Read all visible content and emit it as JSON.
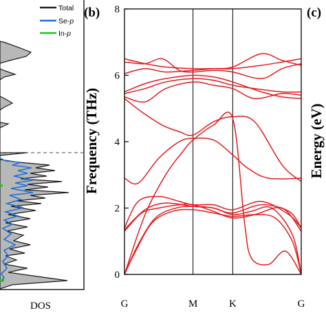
{
  "chart_data": [
    {
      "panel": "a",
      "type": "area",
      "xlabel": "DOS",
      "legend": {
        "placement": "top-right",
        "items": [
          {
            "name": "Total",
            "color": "#222222",
            "italic_suffix": ""
          },
          {
            "name": "Se-",
            "color": "#1f6fd6",
            "italic_suffix": "p"
          },
          {
            "name": "In-",
            "color": "#22c022",
            "italic_suffix": "p"
          }
        ]
      },
      "reference_line": "dashed",
      "fill_color": "#b8b8b8"
    },
    {
      "panel": "b",
      "panel_label": "(b)",
      "type": "line",
      "title": "",
      "ylabel": "Frequency (THz)",
      "ylim": [
        0,
        8
      ],
      "yticks": [
        "0",
        "2",
        "4",
        "6",
        "8"
      ],
      "kpoints": [
        {
          "label": "G",
          "x": 0
        },
        {
          "label": "M",
          "x": 1
        },
        {
          "label": "K",
          "x": 1.58
        },
        {
          "label": "G",
          "x": 2.58
        }
      ],
      "line_color": "#e31a1c",
      "zero_line": "dashed",
      "bands": [
        [
          [
            0,
            0
          ],
          [
            0.15,
            0.65
          ],
          [
            0.4,
            1.55
          ],
          [
            0.7,
            1.9
          ],
          [
            1,
            1.95
          ],
          [
            1.3,
            1.85
          ],
          [
            1.58,
            1.75
          ],
          [
            1.9,
            1.8
          ],
          [
            2.2,
            1.7
          ],
          [
            2.45,
            1.0
          ],
          [
            2.58,
            0
          ]
        ],
        [
          [
            0,
            0
          ],
          [
            0.2,
            0.9
          ],
          [
            0.45,
            1.7
          ],
          [
            0.75,
            2.0
          ],
          [
            1,
            2.05
          ],
          [
            1.3,
            2.0
          ],
          [
            1.58,
            1.8
          ],
          [
            1.85,
            1.9
          ],
          [
            2.15,
            2.0
          ],
          [
            2.45,
            1.2
          ],
          [
            2.58,
            0
          ]
        ],
        [
          [
            0,
            0
          ],
          [
            0.3,
            1.8
          ],
          [
            0.6,
            3.0
          ],
          [
            0.85,
            3.7
          ],
          [
            1,
            4.05
          ],
          [
            1.3,
            4.5
          ],
          [
            1.58,
            4.7
          ],
          [
            1.75,
            1.6
          ],
          [
            1.85,
            0.5
          ],
          [
            2.1,
            0.3
          ],
          [
            2.35,
            0.7
          ],
          [
            2.58,
            0
          ]
        ],
        [
          [
            0,
            1.3
          ],
          [
            0.25,
            1.85
          ],
          [
            0.5,
            2.0
          ],
          [
            0.8,
            2.1
          ],
          [
            1,
            2.1
          ],
          [
            1.3,
            1.9
          ],
          [
            1.58,
            1.7
          ],
          [
            1.9,
            1.8
          ],
          [
            2.3,
            2.0
          ],
          [
            2.58,
            1.3
          ]
        ],
        [
          [
            0,
            1.35
          ],
          [
            0.3,
            1.95
          ],
          [
            0.6,
            2.15
          ],
          [
            1,
            2.05
          ],
          [
            1.3,
            2.0
          ],
          [
            1.58,
            1.85
          ],
          [
            2.0,
            2.1
          ],
          [
            2.4,
            1.9
          ],
          [
            2.58,
            1.4
          ]
        ],
        [
          [
            0,
            1.4
          ],
          [
            0.2,
            2.2
          ],
          [
            0.5,
            2.35
          ],
          [
            0.8,
            2.2
          ],
          [
            1,
            2.1
          ],
          [
            1.3,
            2.1
          ],
          [
            1.58,
            1.95
          ],
          [
            2.0,
            2.2
          ],
          [
            2.4,
            1.8
          ],
          [
            2.58,
            1.4
          ]
        ],
        [
          [
            0,
            2.9
          ],
          [
            0.2,
            2.75
          ],
          [
            0.5,
            3.5
          ],
          [
            0.8,
            4.0
          ],
          [
            1,
            4.1
          ],
          [
            1.3,
            4.05
          ],
          [
            1.58,
            3.6
          ],
          [
            1.8,
            3.2
          ],
          [
            2.1,
            2.9
          ],
          [
            2.58,
            2.9
          ]
        ],
        [
          [
            0,
            5.3
          ],
          [
            0.25,
            4.9
          ],
          [
            0.55,
            4.5
          ],
          [
            0.8,
            4.3
          ],
          [
            1,
            4.2
          ],
          [
            1.3,
            4.6
          ],
          [
            1.58,
            4.75
          ],
          [
            1.9,
            4.6
          ],
          [
            2.3,
            3.3
          ],
          [
            2.58,
            2.8
          ]
        ],
        [
          [
            0,
            5.35
          ],
          [
            0.3,
            5.2
          ],
          [
            0.6,
            5.6
          ],
          [
            1,
            5.8
          ],
          [
            1.3,
            5.7
          ],
          [
            1.58,
            5.6
          ],
          [
            1.9,
            5.3
          ],
          [
            2.3,
            5.45
          ],
          [
            2.58,
            5.4
          ]
        ],
        [
          [
            0,
            5.45
          ],
          [
            0.3,
            5.6
          ],
          [
            0.6,
            5.8
          ],
          [
            1,
            5.9
          ],
          [
            1.3,
            5.85
          ],
          [
            1.58,
            5.7
          ],
          [
            1.9,
            5.6
          ],
          [
            2.3,
            5.5
          ],
          [
            2.58,
            5.5
          ]
        ],
        [
          [
            0,
            5.5
          ],
          [
            0.3,
            5.75
          ],
          [
            0.6,
            5.9
          ],
          [
            1,
            6.0
          ],
          [
            1.3,
            5.95
          ],
          [
            1.58,
            5.8
          ],
          [
            2.0,
            5.5
          ],
          [
            2.3,
            5.35
          ],
          [
            2.58,
            5.3
          ]
        ],
        [
          [
            0,
            6.05
          ],
          [
            0.3,
            6.2
          ],
          [
            0.6,
            6.1
          ],
          [
            1,
            6.15
          ],
          [
            1.3,
            6.2
          ],
          [
            1.58,
            6.25
          ],
          [
            2.0,
            6.65
          ],
          [
            2.3,
            6.45
          ],
          [
            2.58,
            6.3
          ]
        ],
        [
          [
            0,
            6.4
          ],
          [
            0.3,
            6.35
          ],
          [
            0.55,
            6.5
          ],
          [
            0.8,
            6.15
          ],
          [
            1,
            6.1
          ],
          [
            1.3,
            6.15
          ],
          [
            1.58,
            6.1
          ],
          [
            2.0,
            5.9
          ],
          [
            2.3,
            6.2
          ],
          [
            2.58,
            6.35
          ]
        ],
        [
          [
            0,
            6.5
          ],
          [
            0.3,
            6.35
          ],
          [
            0.6,
            6.25
          ],
          [
            1,
            6.2
          ],
          [
            1.3,
            6.2
          ],
          [
            1.58,
            6.2
          ],
          [
            2.0,
            6.3
          ],
          [
            2.3,
            6.4
          ],
          [
            2.58,
            6.5
          ]
        ]
      ]
    },
    {
      "panel": "c",
      "panel_label": "(c)",
      "type": "line",
      "ylabel": "Energy (eV)"
    }
  ]
}
